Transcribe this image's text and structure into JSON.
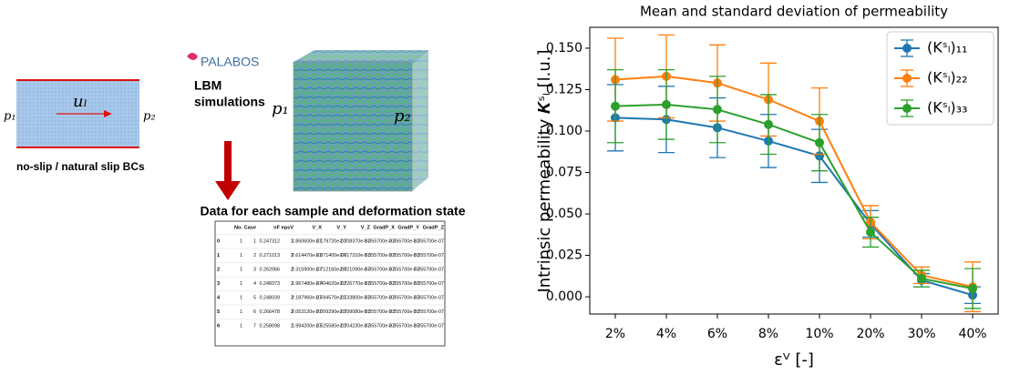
{
  "diagram": {
    "flow_label": "uₗ",
    "inlet_pressure": "p₁",
    "outlet_pressure": "p₂",
    "boundary_caption": "no-slip / natural slip BCs",
    "software": "PALABOS",
    "method_lines": [
      "LBM",
      "simulations"
    ],
    "cube_inlet": "p₁",
    "cube_outlet": "p₂"
  },
  "table": {
    "title": "Data for each sample and deformation state",
    "header": [
      "",
      "No.",
      "Case",
      "nF",
      "epsV",
      "V_X",
      "V_Y",
      "V_Z",
      "GradP_X",
      "GradP_Y",
      "GradP_Z"
    ],
    "rows": [
      [
        "0",
        "1",
        "1",
        "0.247312",
        "2",
        "1.850600e-07",
        "2.179720e-07",
        "2.208370e-07",
        "3.355700e-07",
        "3.355700e-07",
        "3.355700e-07"
      ],
      [
        "1",
        "1",
        "2",
        "0.271013",
        "2",
        "2.614470e-07",
        "2.871400e-07",
        "2.617310e-07",
        "3.355700e-07",
        "3.355700e-07",
        "3.355700e-07"
      ],
      [
        "2",
        "1",
        "3",
        "0.262066",
        "2",
        "2.315900e-07",
        "2.712160e-07",
        "2.021090e-07",
        "3.355700e-07",
        "3.355700e-07",
        "3.355700e-07"
      ],
      [
        "3",
        "1",
        "4",
        "0.248373",
        "2",
        "1.967480e-07",
        "2.404620e-07",
        "2.226770e-07",
        "3.355700e-07",
        "3.355700e-07",
        "3.355700e-07"
      ],
      [
        "4",
        "1",
        "5",
        "0.248039",
        "2",
        "2.187960e-07",
        "2.594570e-07",
        "2.133800e-07",
        "3.355700e-07",
        "3.355700e-07",
        "3.355700e-07"
      ],
      [
        "5",
        "1",
        "6",
        "0.266478",
        "2",
        "2.053120e-07",
        "3.009290e-07",
        "2.299080e-07",
        "3.355700e-07",
        "3.355700e-07",
        "3.355700e-07"
      ],
      [
        "6",
        "1",
        "7",
        "0.258098",
        "2",
        "1.994200e-07",
        "2.525580e-07",
        "2.204230e-07",
        "3.355700e-07",
        "3.355700e-07",
        "3.355700e-07"
      ]
    ]
  },
  "chart_data": {
    "type": "errorbar-line",
    "title": "Mean and standard deviation of permeability",
    "x_label": "εⱽ [-]",
    "y_label": "Intrinsic permeability 𝑲ˢₗ [l.u.]",
    "categories": [
      "2%",
      "4%",
      "6%",
      "8%",
      "10%",
      "20%",
      "30%",
      "40%"
    ],
    "series": [
      {
        "name": "(Kˢₗ)₁₁",
        "color": "#1f77b4",
        "values": [
          0.108,
          0.107,
          0.102,
          0.094,
          0.085,
          0.044,
          0.01,
          0.001
        ],
        "errors": [
          0.02,
          0.02,
          0.018,
          0.016,
          0.016,
          0.008,
          0.004,
          0.005
        ]
      },
      {
        "name": "(Kˢₗ)₂₂",
        "color": "#ff7f0e",
        "values": [
          0.131,
          0.133,
          0.129,
          0.119,
          0.106,
          0.045,
          0.013,
          0.006
        ],
        "errors": [
          0.025,
          0.025,
          0.023,
          0.022,
          0.02,
          0.01,
          0.005,
          0.015
        ]
      },
      {
        "name": "(Kˢₗ)₃₃",
        "color": "#2ca02c",
        "values": [
          0.115,
          0.116,
          0.113,
          0.104,
          0.093,
          0.039,
          0.011,
          0.005
        ],
        "errors": [
          0.022,
          0.021,
          0.02,
          0.018,
          0.017,
          0.009,
          0.005,
          0.012
        ]
      }
    ],
    "ylim": [
      -0.0104,
      0.1626
    ],
    "yticks": [
      {
        "value": 0,
        "label": "0.000"
      },
      {
        "value": 0.025,
        "label": "0.025"
      },
      {
        "value": 0.05,
        "label": "0.050"
      },
      {
        "value": 0.075,
        "label": "0.075"
      },
      {
        "value": 0.1,
        "label": "0.100"
      },
      {
        "value": 0.125,
        "label": "0.125"
      },
      {
        "value": 0.15,
        "label": "0.150"
      }
    ],
    "legend": "upper right"
  }
}
